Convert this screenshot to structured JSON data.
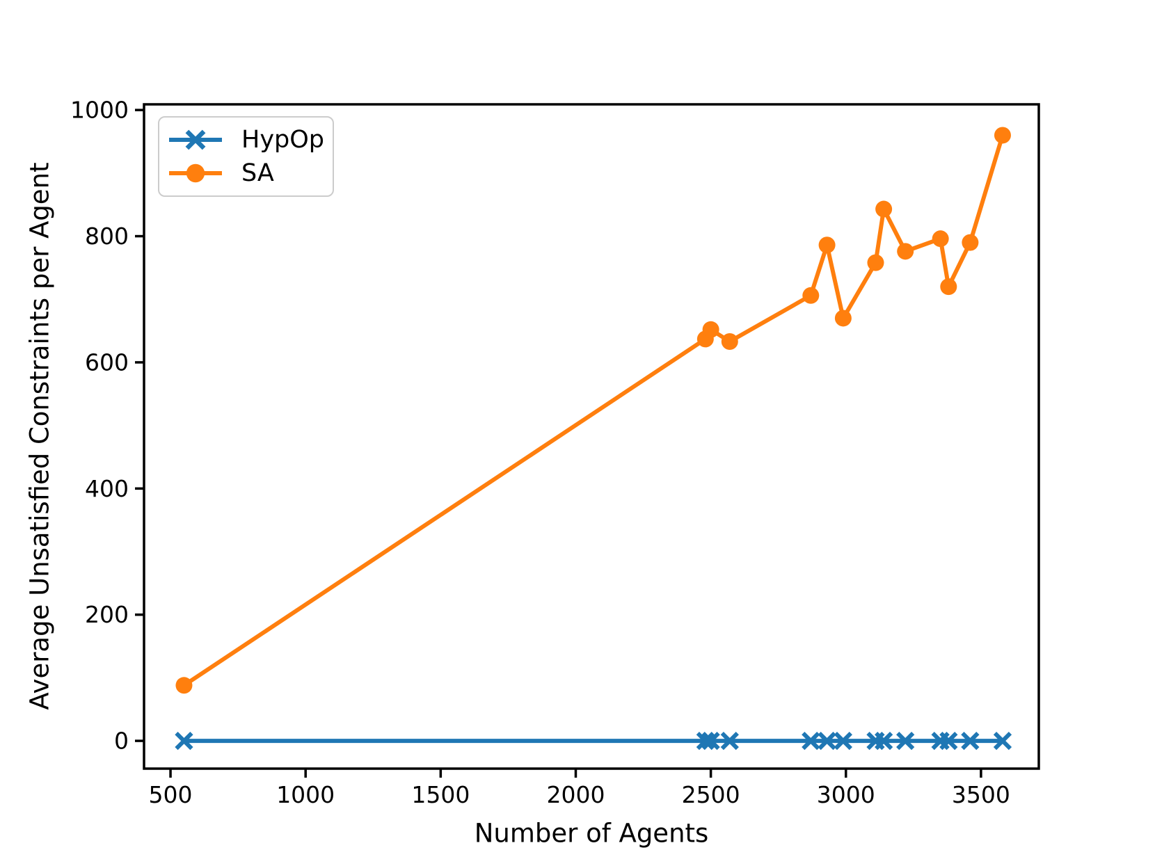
{
  "figure": {
    "background": "#ffffff",
    "title": ""
  },
  "legend": {
    "position": "upper-left",
    "entries": [
      {
        "label": "HypOp"
      },
      {
        "label": "SA"
      }
    ]
  },
  "chart_data": {
    "type": "line",
    "title": "",
    "xlabel": "Number of Agents",
    "ylabel": "Average Unsatisfied Constraints per Agent",
    "x": [
      550,
      2480,
      2500,
      2570,
      2870,
      2930,
      2990,
      3110,
      3140,
      3220,
      3350,
      3380,
      3460,
      3580
    ],
    "series": [
      {
        "name": "HypOp",
        "color": "#1f77b4",
        "marker": "x",
        "values": [
          0,
          0,
          0,
          0,
          0,
          0,
          0,
          0,
          0,
          0,
          0,
          0,
          0,
          0
        ]
      },
      {
        "name": "SA",
        "color": "#ff7f0e",
        "marker": "circle",
        "values": [
          88,
          637,
          652,
          633,
          706,
          786,
          670,
          758,
          843,
          776,
          796,
          720,
          790,
          960
        ]
      }
    ],
    "xticks": [
      500,
      1000,
      1500,
      2000,
      2500,
      3000,
      3500
    ],
    "yticks": [
      0,
      200,
      400,
      600,
      800,
      1000
    ],
    "xlim": [
      402,
      3714
    ],
    "ylim": [
      -44,
      1009
    ],
    "grid": false,
    "legend_position": "upper-left",
    "axis_color": "#000000"
  }
}
